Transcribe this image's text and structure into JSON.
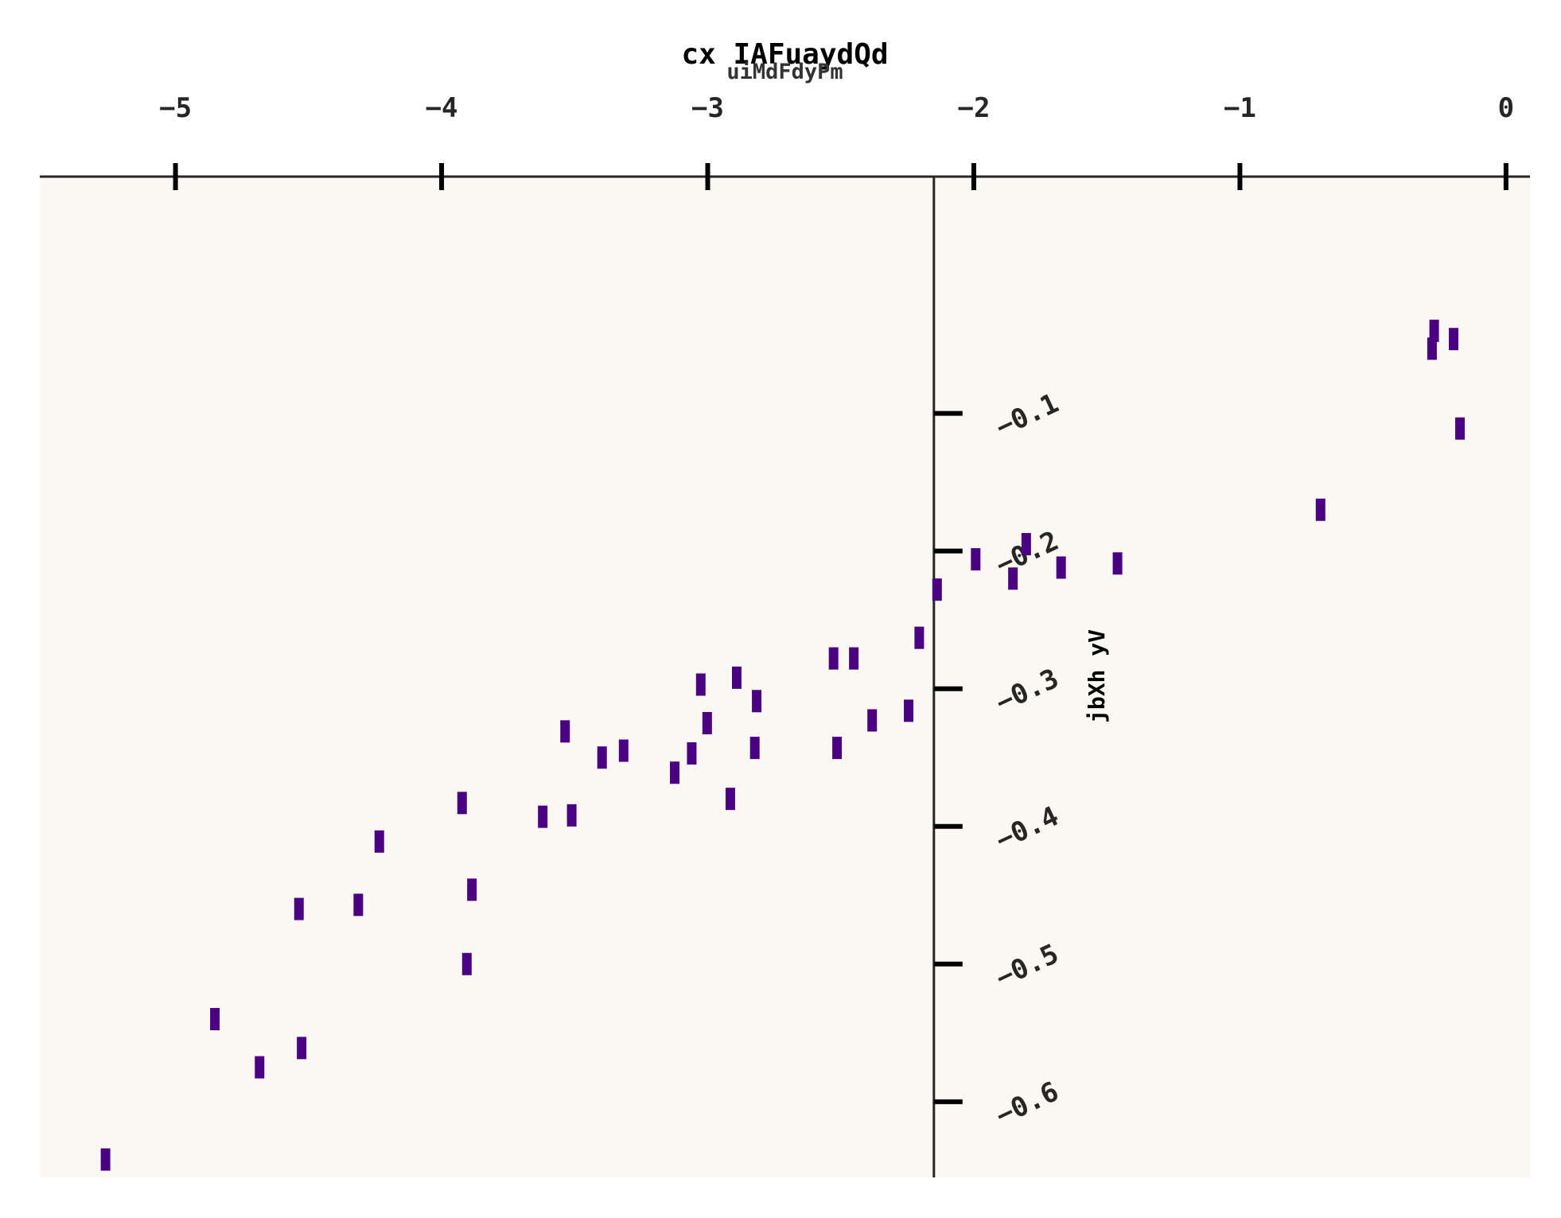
{
  "colors": {
    "plot_background": "#f9f8f2",
    "marker": "#4b0082",
    "axis": "#262626",
    "tick": "#000000"
  },
  "chart_data": {
    "type": "scatter",
    "title": "cx IAFuaydQd",
    "subtitle": "uiMdFdyPm",
    "xlabel": "",
    "ylabel": "jbXh yV",
    "xlim": [
      -5.51,
      0.09
    ],
    "ylim": [
      -0.655,
      0.072
    ],
    "x_axis_position": "top",
    "y_axis_crossing_x": -2.15,
    "x_ticks": [
      -5,
      -4,
      -3,
      -2,
      -1,
      0
    ],
    "x_tick_labels": [
      "−5",
      "−4",
      "−3",
      "−2",
      "−1",
      "0"
    ],
    "y_ticks": [
      -0.1,
      -0.2,
      -0.3,
      -0.4,
      -0.5,
      -0.6
    ],
    "y_tick_labels": [
      "−0.1",
      "−0.2",
      "−0.3",
      "−0.4",
      "−0.5",
      "−0.6"
    ],
    "grid": false,
    "legend": "none",
    "marker": "vertical bar",
    "series": [
      {
        "x": [
          -0.27,
          -0.197,
          -0.278,
          -0.173,
          -0.697,
          -1.46,
          -1.672,
          -1.853,
          -1.803,
          -1.993,
          -2.138,
          -2.205,
          -2.451,
          -2.527,
          -2.245,
          -2.382,
          -2.514,
          -2.816,
          -2.891,
          -3.026,
          -2.823,
          -3.002,
          -3.06,
          -3.124,
          -3.316,
          -3.397,
          -3.536,
          -2.915,
          -3.511,
          -3.62,
          -3.923,
          -4.234,
          -3.886,
          -4.313,
          -4.536,
          -3.905,
          -4.852,
          -4.526,
          -4.684,
          -5.263
        ],
        "y": [
          -0.04,
          -0.046,
          -0.053,
          -0.111,
          -0.17,
          -0.209,
          -0.212,
          -0.22,
          -0.195,
          -0.206,
          -0.228,
          -0.263,
          -0.278,
          -0.278,
          -0.316,
          -0.323,
          -0.343,
          -0.309,
          -0.292,
          -0.297,
          -0.343,
          -0.325,
          -0.347,
          -0.361,
          -0.345,
          -0.35,
          -0.331,
          -0.38,
          -0.392,
          -0.393,
          -0.383,
          -0.411,
          -0.446,
          -0.457,
          -0.46,
          -0.5,
          -0.54,
          -0.561,
          -0.575,
          -0.642
        ]
      }
    ]
  }
}
